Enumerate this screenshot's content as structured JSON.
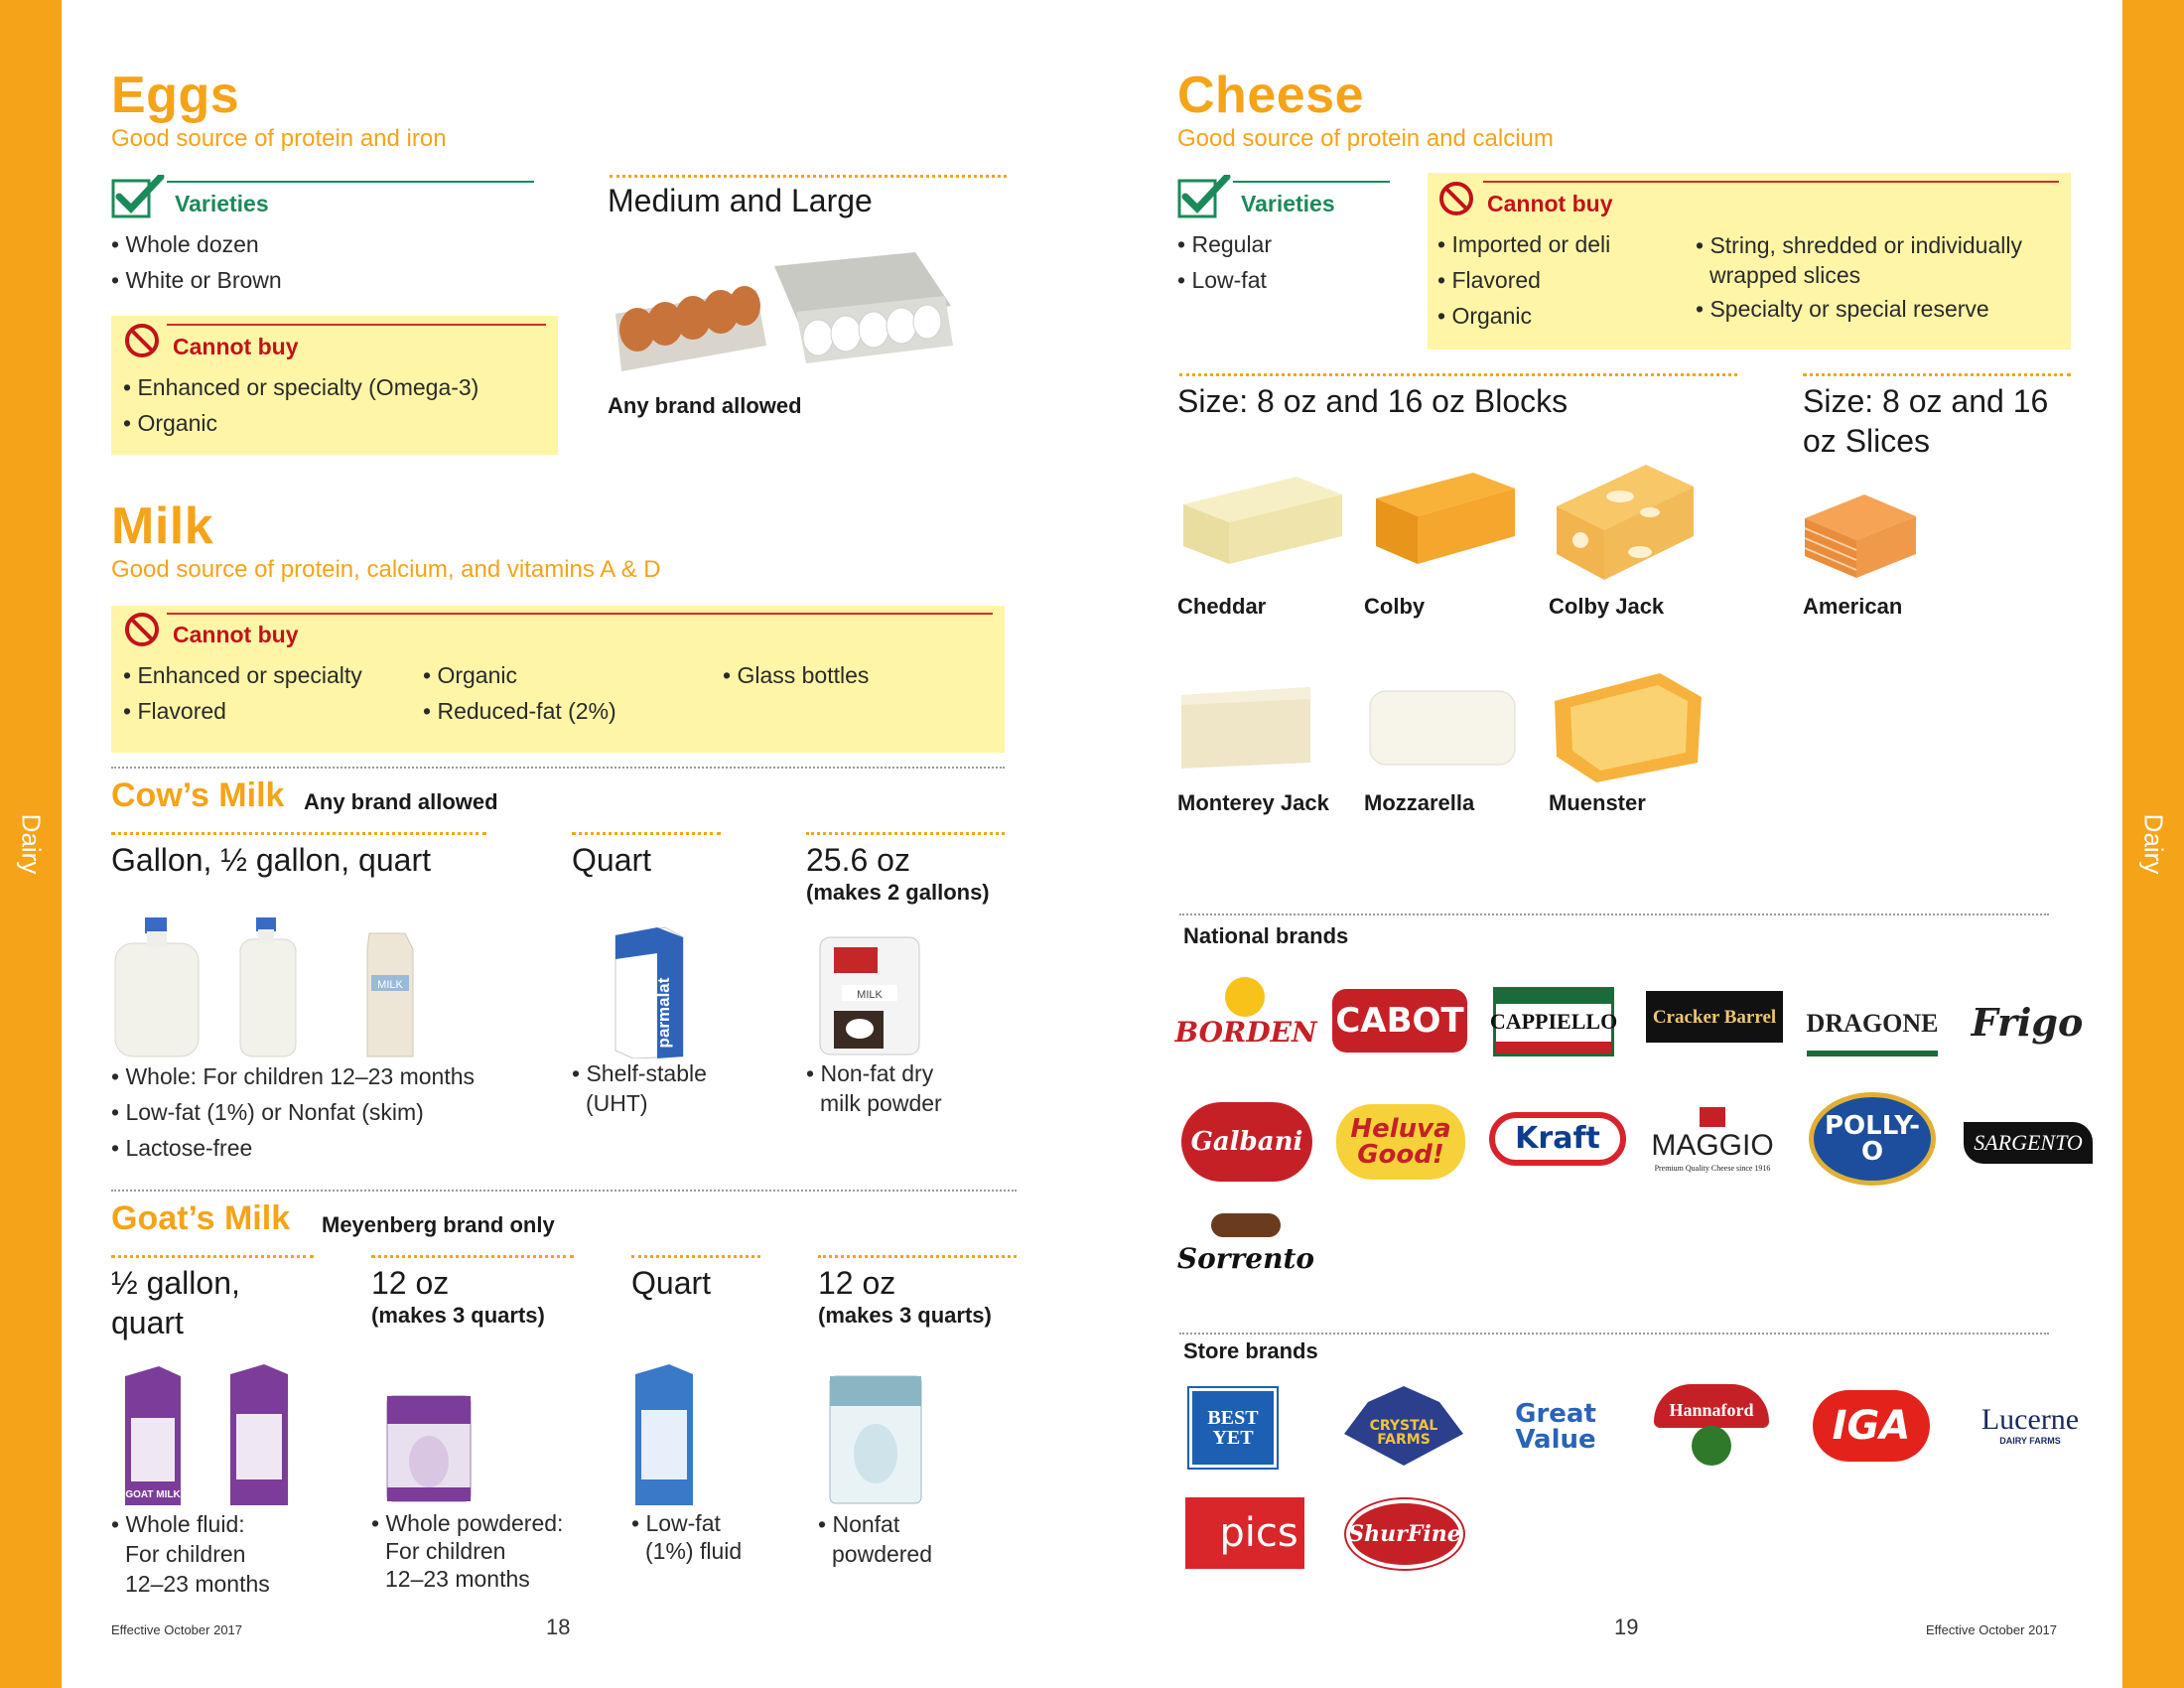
{
  "side_label": "Dairy",
  "eggs": {
    "title": "Eggs",
    "subtitle": "Good source of protein and iron",
    "varieties_label": "Varieties",
    "varieties": [
      "Whole dozen",
      "White or Brown"
    ],
    "cannot_label": "Cannot buy",
    "cannot": [
      "Enhanced or specialty (Omega-3)",
      "Organic"
    ],
    "size_title": "Medium and Large",
    "brand_note": "Any brand allowed"
  },
  "milk": {
    "title": "Milk",
    "subtitle": "Good source of protein, calcium, and vitamins A & D",
    "cannot_label": "Cannot buy",
    "cannot_col1": [
      "Enhanced or specialty",
      "Flavored"
    ],
    "cannot_col2": [
      "Organic",
      "Reduced-fat (2%)"
    ],
    "cannot_col3": [
      "Glass bottles"
    ],
    "cows": {
      "title": "Cow’s Milk",
      "note": "Any brand allowed",
      "size1": "Gallon, ½ gallon, quart",
      "size2": "Quart",
      "size3": "25.6 oz",
      "size3_note": "(makes 2 gallons)",
      "list1": [
        "Whole: For children 12–23 months",
        "Low-fat (1%) or Nonfat (skim)",
        "Lactose-free"
      ],
      "list2": [
        "Shelf-stable",
        "(UHT)"
      ],
      "list3": [
        "Non-fat dry",
        "milk powder"
      ],
      "carton_label": "MILK",
      "uht_brand": "parmalat",
      "powder_label": "MILK"
    },
    "goats": {
      "title": "Goat’s Milk",
      "note": "Meyenberg brand only",
      "size1": "½ gallon, quart",
      "size2": "12 oz",
      "size2_note": "(makes 3 quarts)",
      "size3": "Quart",
      "size4": "12 oz",
      "size4_note": "(makes 3 quarts)",
      "list1": [
        "Whole fluid:",
        "For children",
        "12–23 months"
      ],
      "list2": [
        "Whole powdered:",
        "For children",
        "12–23 months"
      ],
      "list3": [
        "Low-fat",
        "(1%) fluid"
      ],
      "list4": [
        "Nonfat",
        "powdered"
      ],
      "pack_label": "GOAT MILK"
    }
  },
  "cheese": {
    "title": "Cheese",
    "subtitle": "Good source of protein and calcium",
    "varieties_label": "Varieties",
    "varieties": [
      "Regular",
      "Low-fat"
    ],
    "cannot_label": "Cannot buy",
    "cannot_col1": [
      "Imported or deli",
      "Flavored",
      "Organic"
    ],
    "cannot_col2": [
      "String, shredded or individually",
      "wrapped slices",
      "Specialty or special reserve"
    ],
    "blocks_title": "Size: 8 oz and 16 oz Blocks",
    "slices_title": "Size: 8 oz and 16 oz Slices",
    "types": [
      "Cheddar",
      "Colby",
      "Colby Jack",
      "American",
      "Monterey Jack",
      "Mozzarella",
      "Muenster"
    ],
    "national_label": "National brands",
    "national_brands": [
      "BORDEN",
      "CABOT",
      "CAPPIELLO",
      "Cracker Barrel",
      "DRAGONE",
      "Frigo",
      "Galbani",
      "Heluva Good!",
      "Kraft",
      "MAGGIO",
      "POLLY-O",
      "SARGENTO",
      "Sorrento"
    ],
    "maggio_tagline": "Premium Quality Cheese since 1916",
    "store_label": "Store brands",
    "store_brands": [
      "BEST YET",
      "CRYSTAL FARMS",
      "Great Value",
      "Hannaford",
      "IGA",
      "Lucerne",
      "pics",
      "ShurFine"
    ],
    "lucerne_sub": "DAIRY FARMS"
  },
  "footer": {
    "left_effective": "Effective October 2017",
    "left_page": "18",
    "right_page": "19",
    "right_effective": "Effective October 2017"
  },
  "colors": {
    "accent": "#f5a318",
    "cannot_red": "#c3121a",
    "varieties_green": "#1b8a5a",
    "box_yellow": "#fef6a6"
  }
}
